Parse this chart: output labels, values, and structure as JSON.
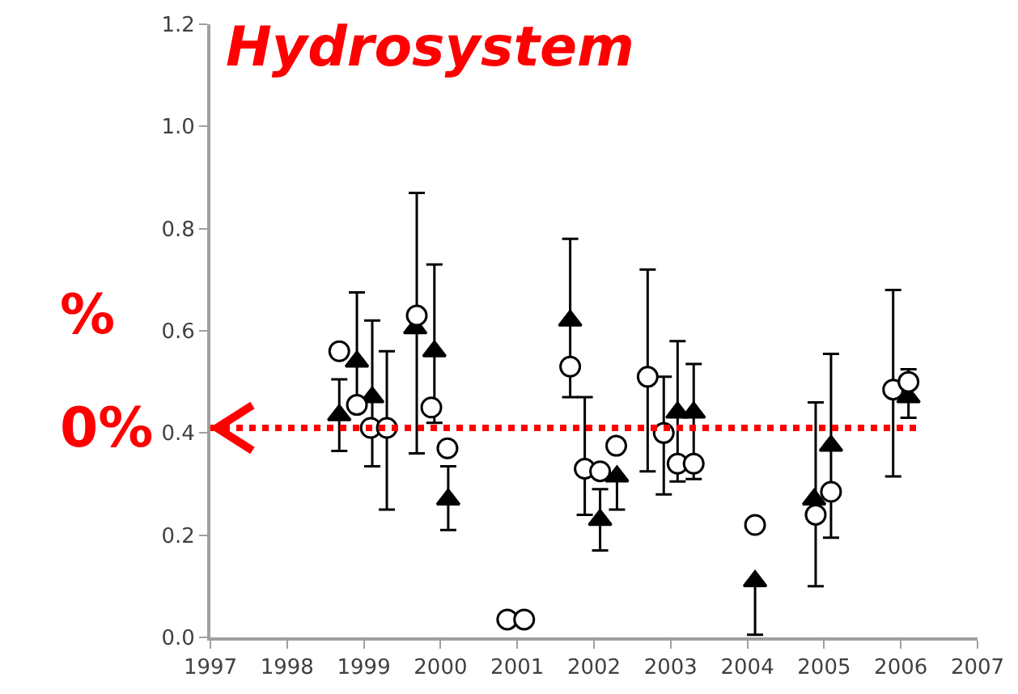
{
  "chart_data": {
    "type": "scatter",
    "title": "Hydrosystem",
    "annotations": [
      "%",
      "0%"
    ],
    "xlim": [
      1997,
      2007
    ],
    "xticks": [
      1997,
      1998,
      1999,
      2000,
      2001,
      2002,
      2003,
      2004,
      2005,
      2006,
      2007
    ],
    "ylim": [
      0,
      1.2
    ],
    "yticks": [
      {
        "value": 0,
        "label": "0.0"
      },
      0.2,
      0.4,
      0.6,
      0.8,
      {
        "value": 1,
        "label": "1.0"
      },
      1.2
    ],
    "grid": false,
    "ref_lines": [
      {
        "axis": "y",
        "value": 0.41,
        "color": "#ff0000",
        "line_style": "dotted"
      }
    ],
    "series": [
      {
        "color": "#ffffff",
        "marker": "circle",
        "x": [
          1998.68,
          1998.91,
          1999.09,
          1999.3,
          1999.69,
          1999.88,
          2000.09,
          2000.87,
          2001.09,
          2001.69,
          2001.88,
          2002.08,
          2002.29,
          2002.7,
          2002.91,
          2003.09,
          2003.3,
          2004.1,
          2004.89,
          2005.09,
          2005.9,
          2006.1
        ],
        "values": [
          0.56,
          0.455,
          0.41,
          0.41,
          0.63,
          0.45,
          0.37,
          0.035,
          0.035,
          0.53,
          0.33,
          0.325,
          0.375,
          0.51,
          0.4,
          0.34,
          0.34,
          0.22,
          0.24,
          0.285,
          0.485,
          0.5
        ],
        "errors": [
          null,
          null,
          null,
          [
            0.25,
            0.56
          ],
          [
            0.36,
            0.87
          ],
          null,
          null,
          null,
          null,
          null,
          [
            0.24,
            0.47
          ],
          null,
          null,
          [
            0.325,
            0.72
          ],
          [
            0.28,
            0.51
          ],
          null,
          null,
          null,
          [
            0.1,
            0.46
          ],
          null,
          [
            0.315,
            0.68
          ],
          null
        ]
      },
      {
        "color": "#000000",
        "marker": "triangle",
        "x": [
          1998.68,
          1998.91,
          1999.11,
          1999.67,
          1999.92,
          2000.1,
          2001.69,
          2002.08,
          2002.3,
          2003.09,
          2003.3,
          2004.1,
          2004.87,
          2005.09,
          2006.1
        ],
        "values": [
          0.435,
          0.54,
          0.47,
          0.605,
          0.56,
          0.27,
          0.62,
          0.23,
          0.315,
          0.44,
          0.44,
          0.11,
          0.27,
          0.375,
          0.47
        ],
        "errors": [
          [
            0.365,
            0.505
          ],
          [
            0.45,
            0.675
          ],
          [
            0.335,
            0.62
          ],
          null,
          [
            0.42,
            0.73
          ],
          [
            0.21,
            0.335
          ],
          [
            0.47,
            0.78
          ],
          [
            0.17,
            0.29
          ],
          [
            0.25,
            0.315
          ],
          [
            0.305,
            0.58
          ],
          [
            0.31,
            0.535
          ],
          [
            0.005,
            0.11
          ],
          null,
          [
            0.195,
            0.555
          ],
          [
            0.43,
            0.525
          ]
        ]
      }
    ]
  }
}
